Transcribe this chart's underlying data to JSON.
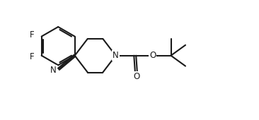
{
  "bg_color": "#ffffff",
  "line_color": "#1a1a1a",
  "line_width": 1.5,
  "font_size": 8.5,
  "fig_width": 3.66,
  "fig_height": 1.7,
  "dpi": 100,
  "xlim": [
    0,
    11
  ],
  "ylim": [
    0,
    5.1
  ]
}
